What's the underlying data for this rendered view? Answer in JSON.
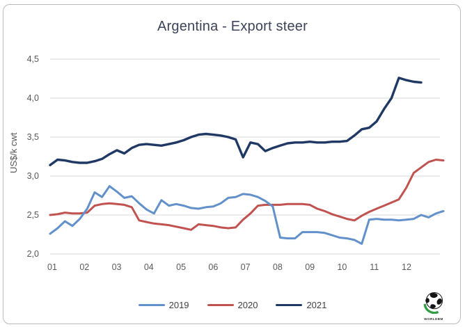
{
  "logo": {
    "text": "WORLDBM"
  },
  "y_axis": {
    "title": "US$/k cwt",
    "ticks": [
      "4,5",
      "4,0",
      "3,5",
      "3,0",
      "2,5",
      "2,0"
    ],
    "tick_values": [
      4.5,
      4.0,
      3.5,
      3.0,
      2.5,
      2.0
    ]
  },
  "x_axis": {
    "ticks": [
      "01",
      "02",
      "03",
      "04",
      "05",
      "06",
      "07",
      "08",
      "09",
      "10",
      "11",
      "12"
    ]
  },
  "legend": {
    "items": [
      {
        "label": "2019",
        "color": "#6190ca"
      },
      {
        "label": "2020",
        "color": "#c0534f"
      },
      {
        "label": "2021",
        "color": "#1f3864"
      }
    ]
  },
  "chart_data": {
    "type": "line",
    "title": "Argentina - Export steer",
    "xlabel": "",
    "ylabel": "US$/k cwt",
    "ylim": [
      2.0,
      4.5
    ],
    "x_unit": "weeks (Jan=01 .. Dec=12, weekly observations)",
    "grid": "horizontal only",
    "legend_position": "bottom center",
    "months": [
      "01",
      "02",
      "03",
      "04",
      "05",
      "06",
      "07",
      "08",
      "09",
      "10",
      "11",
      "12"
    ],
    "series": [
      {
        "name": "2019",
        "color": "#6190ca",
        "values": [
          2.26,
          2.33,
          2.42,
          2.36,
          2.45,
          2.58,
          2.79,
          2.73,
          2.87,
          2.8,
          2.72,
          2.74,
          2.65,
          2.57,
          2.52,
          2.69,
          2.62,
          2.64,
          2.62,
          2.59,
          2.58,
          2.6,
          2.61,
          2.65,
          2.72,
          2.73,
          2.77,
          2.76,
          2.73,
          2.68,
          2.61,
          2.21,
          2.2,
          2.2,
          2.28,
          2.28,
          2.28,
          2.27,
          2.24,
          2.21,
          2.2,
          2.18,
          2.13,
          2.44,
          2.45,
          2.44,
          2.44,
          2.43,
          2.44,
          2.45,
          2.5,
          2.47,
          2.52,
          2.55
        ]
      },
      {
        "name": "2020",
        "color": "#c0534f",
        "values": [
          2.5,
          2.51,
          2.53,
          2.52,
          2.52,
          2.53,
          2.62,
          2.64,
          2.65,
          2.64,
          2.63,
          2.6,
          2.43,
          2.41,
          2.39,
          2.38,
          2.37,
          2.35,
          2.33,
          2.31,
          2.38,
          2.37,
          2.36,
          2.34,
          2.33,
          2.34,
          2.44,
          2.52,
          2.62,
          2.63,
          2.63,
          2.63,
          2.64,
          2.64,
          2.64,
          2.63,
          2.58,
          2.55,
          2.51,
          2.48,
          2.45,
          2.43,
          2.49,
          2.54,
          2.58,
          2.62,
          2.66,
          2.7,
          2.85,
          3.04,
          3.11,
          3.18,
          3.21,
          3.2
        ]
      },
      {
        "name": "2021",
        "color": "#1f3864",
        "values": [
          3.14,
          3.21,
          3.2,
          3.18,
          3.17,
          3.17,
          3.19,
          3.22,
          3.28,
          3.33,
          3.29,
          3.36,
          3.4,
          3.41,
          3.4,
          3.39,
          3.41,
          3.43,
          3.46,
          3.5,
          3.53,
          3.54,
          3.53,
          3.52,
          3.5,
          3.47,
          3.24,
          3.43,
          3.41,
          3.32,
          3.36,
          3.39,
          3.42,
          3.43,
          3.43,
          3.44,
          3.43,
          3.43,
          3.44,
          3.44,
          3.45,
          3.52,
          3.6,
          3.62,
          3.7,
          3.86,
          4.0,
          4.26,
          4.23,
          4.21,
          4.2
        ]
      }
    ]
  }
}
